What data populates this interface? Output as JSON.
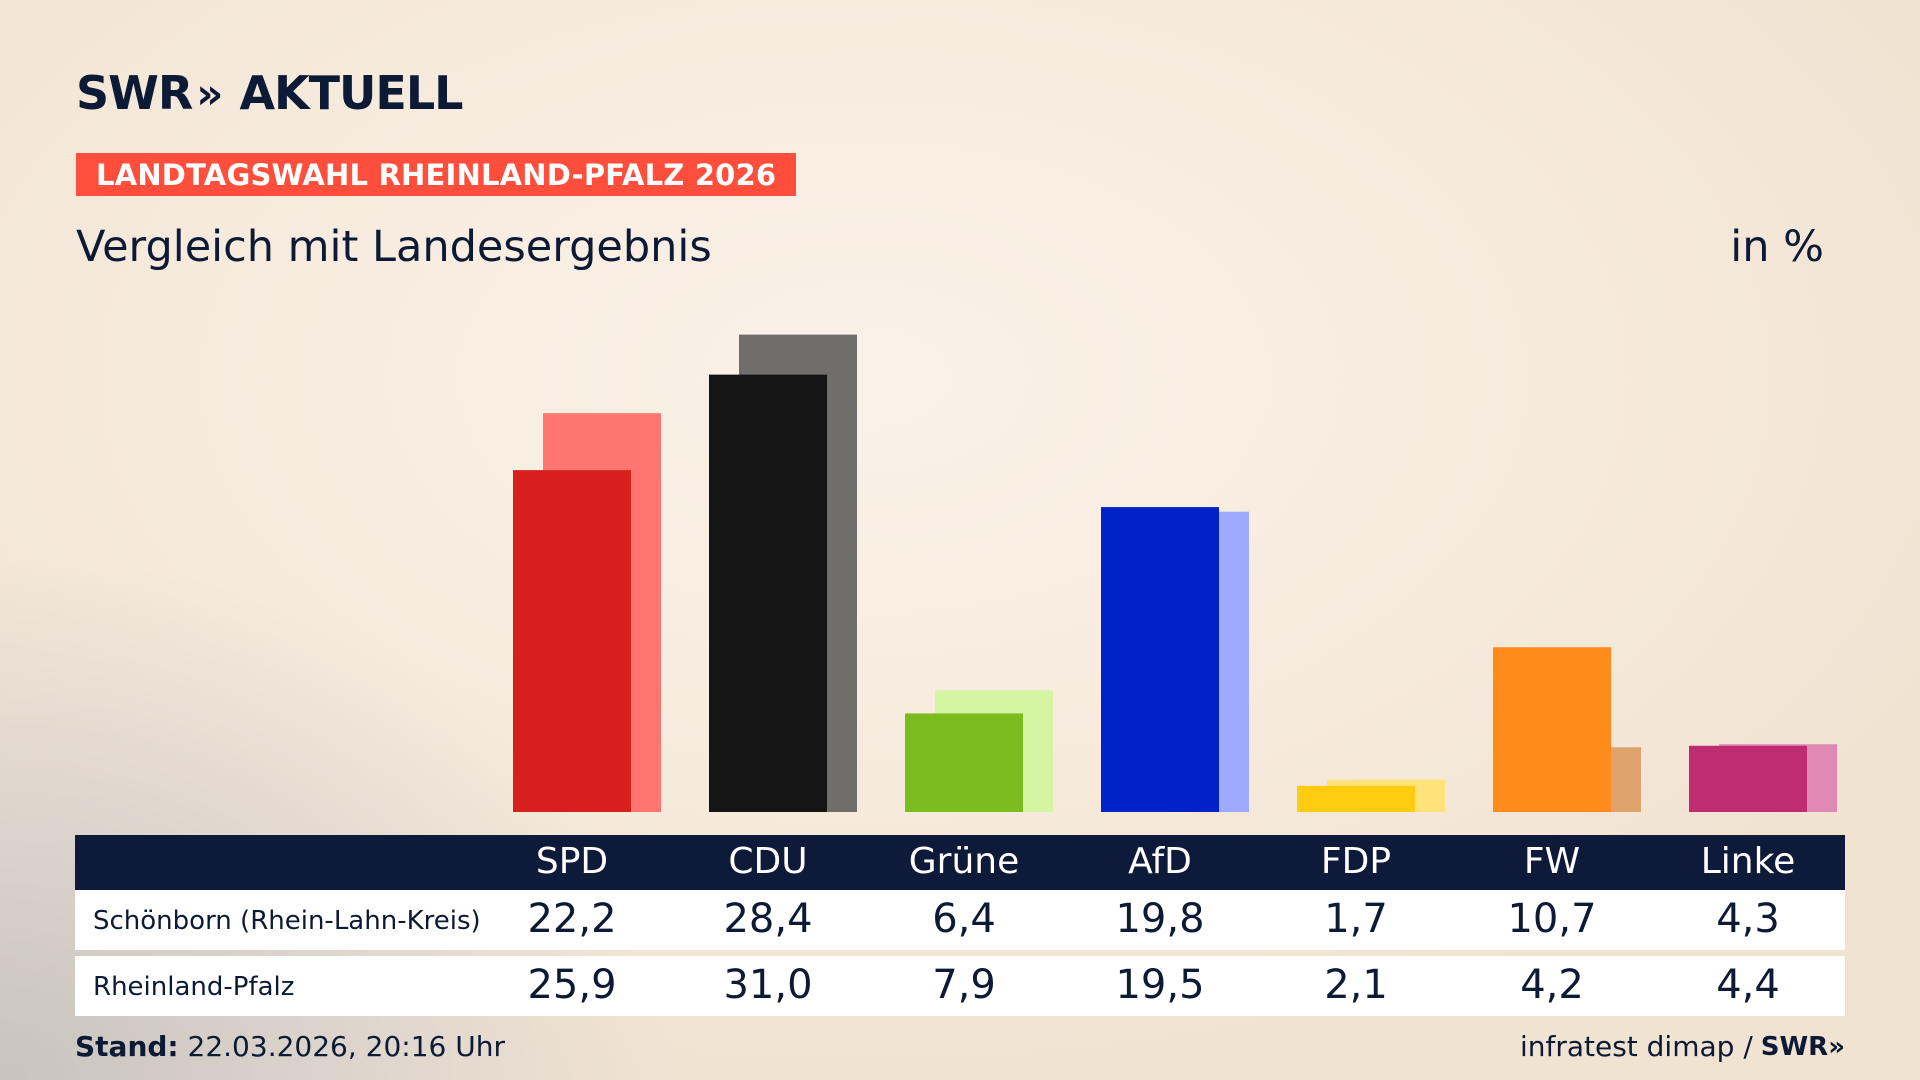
{
  "header": {
    "logo_swr": "SWR",
    "logo_chevrons": "»",
    "logo_aktuell": "AKTUELL",
    "tag": "LANDTAGSWAHL RHEINLAND-PFALZ 2026",
    "subtitle": "Vergleich mit Landesergebnis",
    "unit": "in %"
  },
  "chart_data": {
    "type": "bar",
    "categories": [
      "SPD",
      "CDU",
      "Grüne",
      "AfD",
      "FDP",
      "FW",
      "Linke"
    ],
    "series": [
      {
        "name": "Schönborn (Rhein-Lahn-Kreis)",
        "values": [
          22.2,
          28.4,
          6.4,
          19.8,
          1.7,
          10.7,
          4.3
        ]
      },
      {
        "name": "Rheinland-Pfalz",
        "values": [
          25.9,
          31.0,
          7.9,
          19.5,
          2.1,
          4.2,
          4.4
        ]
      }
    ],
    "colors": {
      "primary": [
        "#d7201e",
        "#151515",
        "#7bbd1e",
        "#0022c8",
        "#ffcc11",
        "#ff8c1a",
        "#be2d72"
      ],
      "secondary": [
        "#ff7670",
        "#706e6b",
        "#d5f5a3",
        "#9daafe",
        "#ffe37a",
        "#dda36b",
        "#df89b4"
      ]
    },
    "ylim": [
      0,
      31
    ]
  },
  "table": {
    "headers": [
      "SPD",
      "CDU",
      "Grüne",
      "AfD",
      "FDP",
      "FW",
      "Linke"
    ],
    "rows": [
      {
        "label": "Schönborn (Rhein-Lahn-Kreis)",
        "values": [
          "22,2",
          "28,4",
          "6,4",
          "19,8",
          "1,7",
          "10,7",
          "4,3"
        ]
      },
      {
        "label": "Rheinland-Pfalz",
        "values": [
          "25,9",
          "31,0",
          "7,9",
          "19,5",
          "2,1",
          "4,2",
          "4,4"
        ]
      }
    ]
  },
  "footer": {
    "stand_label": "Stand:",
    "stand_value": "22.03.2026, 20:16 Uhr",
    "source": "infratest dimap /",
    "source_logo": "SWR»"
  },
  "theme": {
    "navy": "#0d1a35",
    "tag_red": "#ff4f3c"
  }
}
